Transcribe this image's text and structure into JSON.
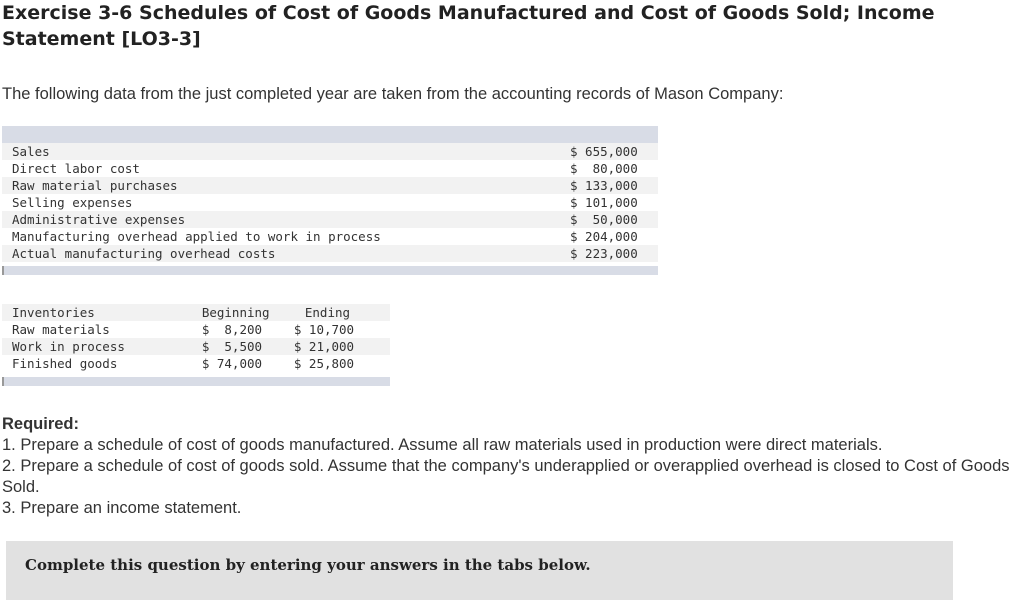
{
  "title": "Exercise 3-6 Schedules of Cost of Goods Manufactured and Cost of Goods Sold; Income Statement [LO3-3]",
  "intro": "The following data from the just completed year are taken from the accounting records of Mason Company:",
  "data_table": {
    "rows": [
      {
        "label": "Sales",
        "value": "$ 655,000"
      },
      {
        "label": "Direct labor cost",
        "value": "$  80,000"
      },
      {
        "label": "Raw material purchases",
        "value": "$ 133,000"
      },
      {
        "label": "Selling expenses",
        "value": "$ 101,000"
      },
      {
        "label": "Administrative expenses",
        "value": "$  50,000"
      },
      {
        "label": "Manufacturing overhead applied to work in process",
        "value": "$ 204,000"
      },
      {
        "label": "Actual manufacturing overhead costs",
        "value": "$ 223,000"
      }
    ]
  },
  "inventory_table": {
    "headers": {
      "label": "Inventories",
      "beginning": "Beginning",
      "ending": "Ending"
    },
    "rows": [
      {
        "label": "Raw materials",
        "beginning": "$  8,200",
        "ending": "$ 10,700"
      },
      {
        "label": "Work in process",
        "beginning": "$  5,500",
        "ending": "$ 21,000"
      },
      {
        "label": "Finished goods",
        "beginning": "$ 74,000",
        "ending": "$ 25,800"
      }
    ]
  },
  "required": {
    "heading": "Required:",
    "items": [
      "1. Prepare a schedule of cost of goods manufactured. Assume all raw materials used in production were direct materials.",
      "2. Prepare a schedule of cost of goods sold. Assume that the company's underapplied or overapplied overhead is closed to Cost of Goods Sold.",
      "3. Prepare an income statement."
    ]
  },
  "instruction_box": "Complete this question by entering your answers in the tabs below."
}
